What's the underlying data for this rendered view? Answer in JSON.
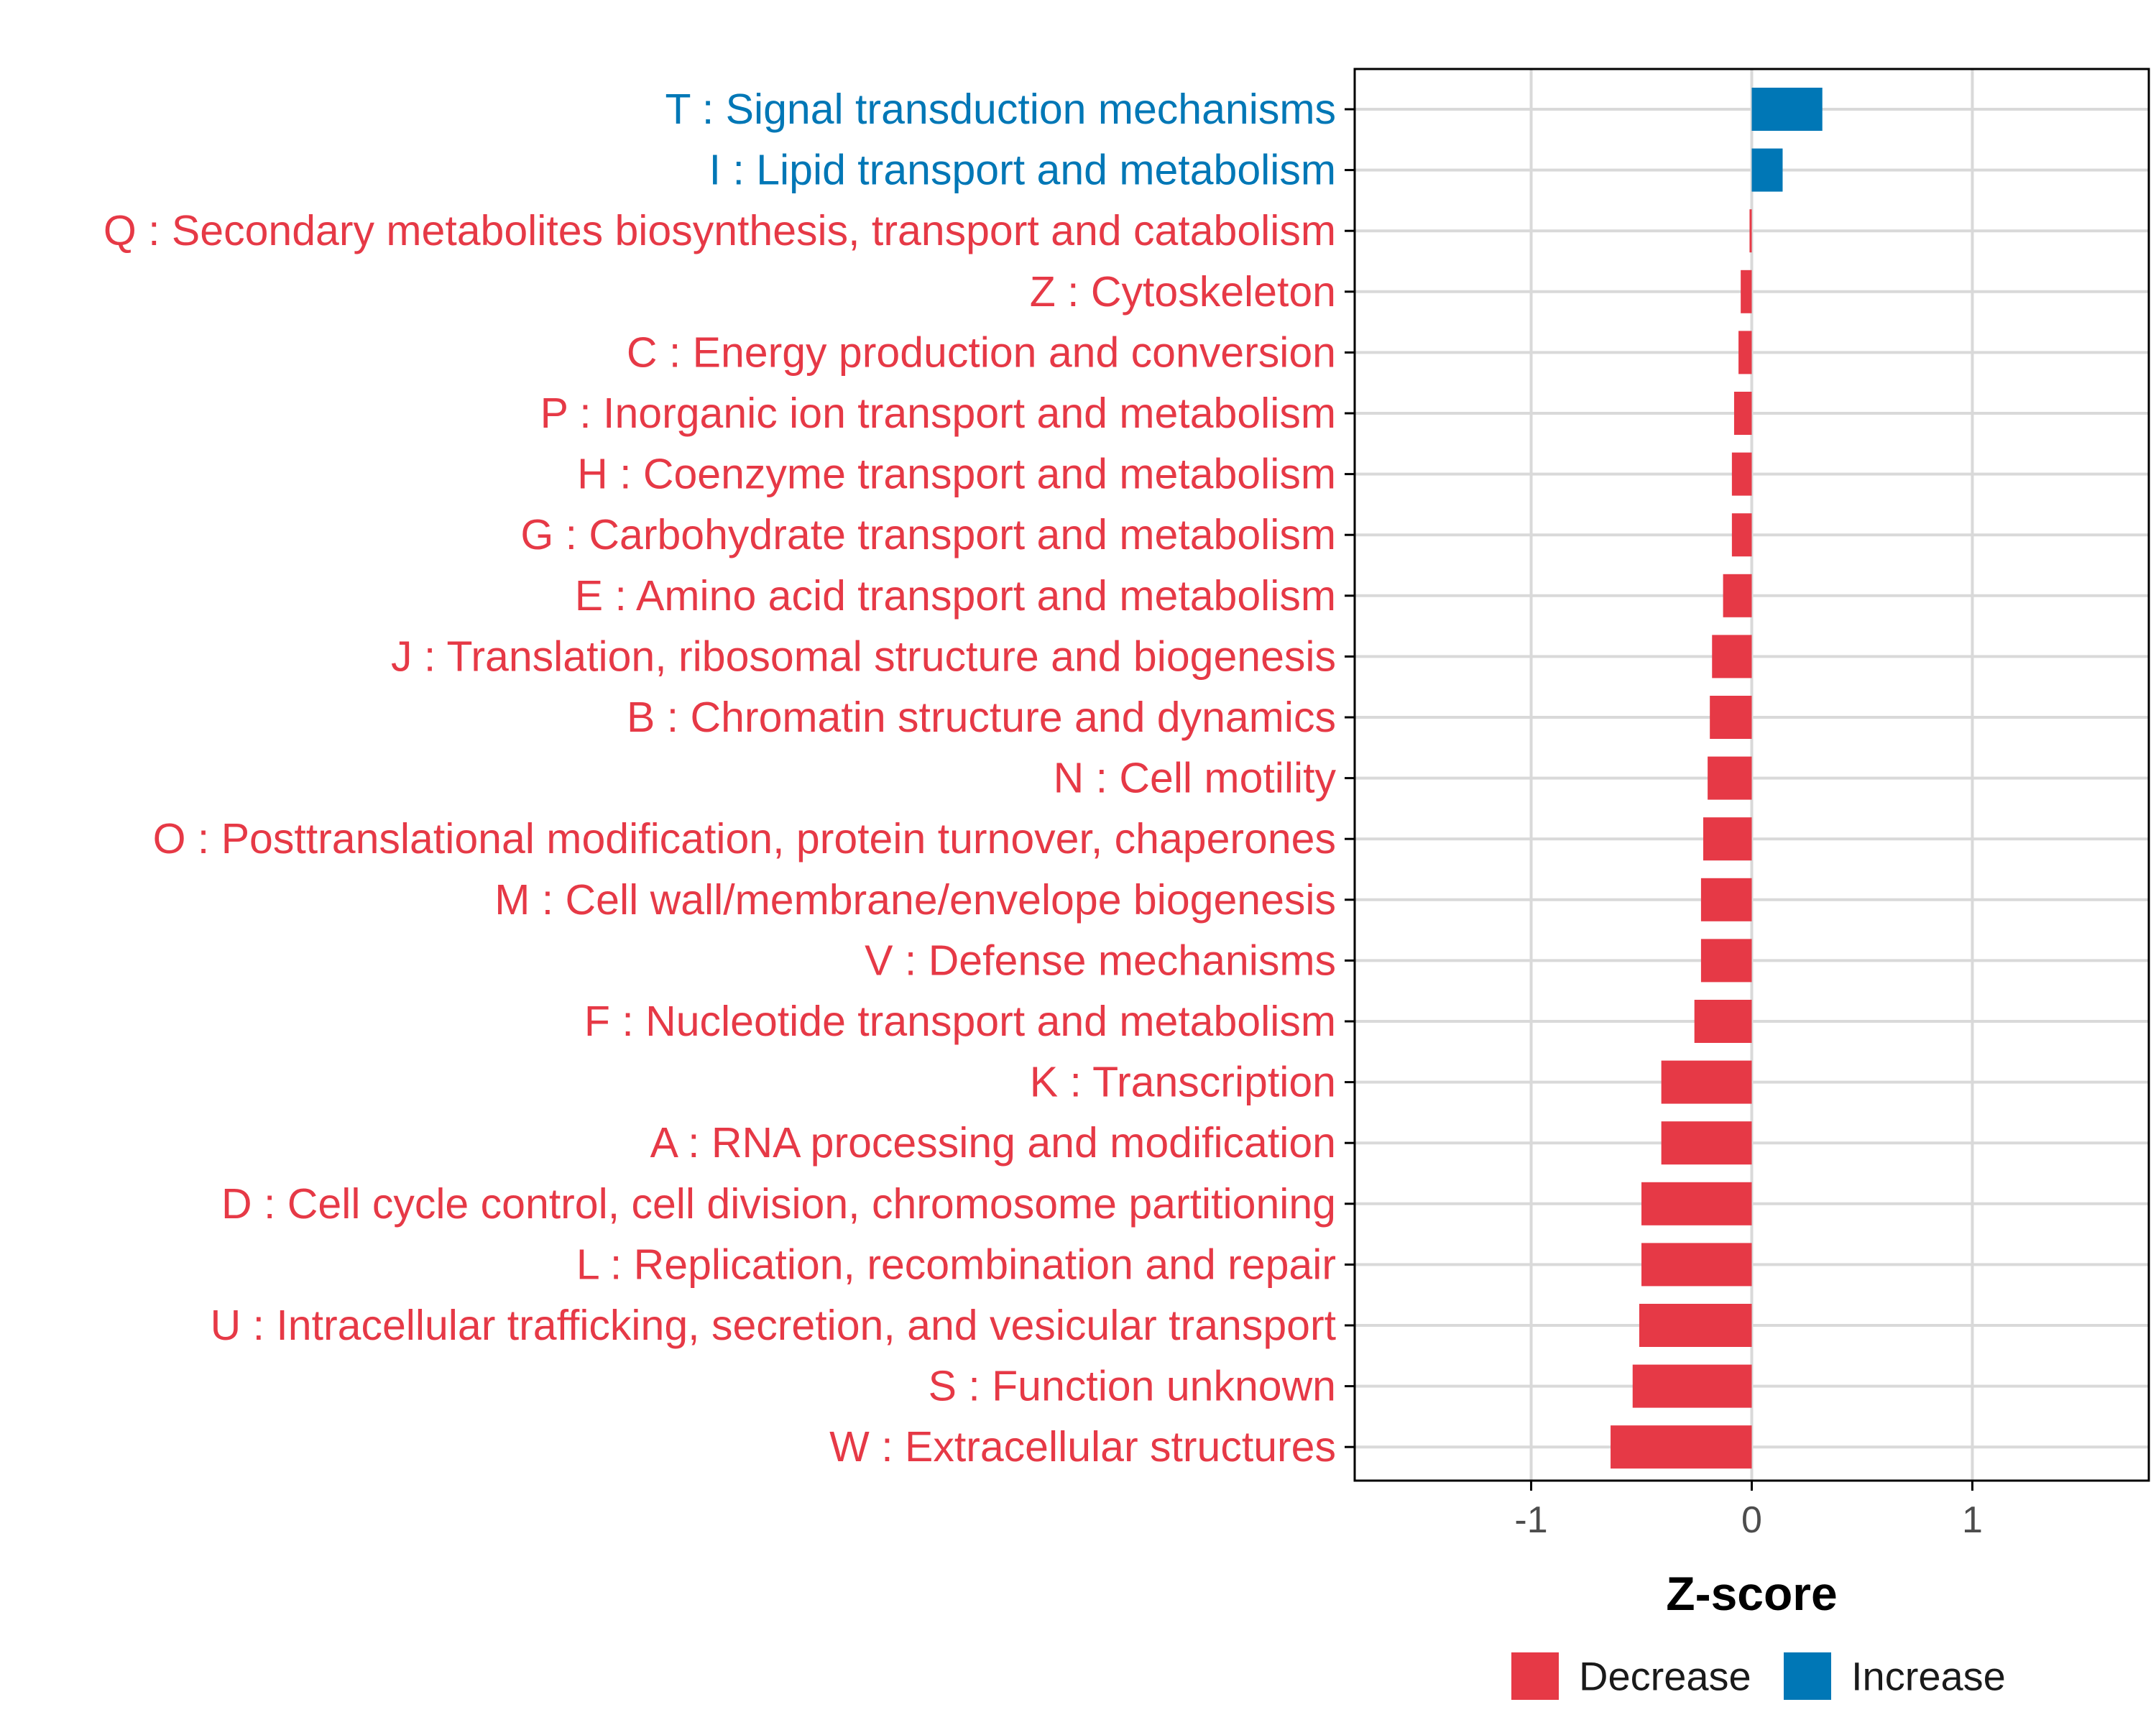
{
  "colors": {
    "decrease": "#e63946",
    "increase": "#0077b6",
    "grid": "#d9d9d9",
    "axis": "#000000",
    "tick_text": "#4d4d4d"
  },
  "chart_data": {
    "type": "bar",
    "orientation": "horizontal",
    "xlabel": "Z-score",
    "xlim": [
      -1.8,
      1.8
    ],
    "xticks": [
      -1,
      0,
      1
    ],
    "xtick_labels": [
      "-1",
      "0",
      "1"
    ],
    "grid": true,
    "legend_position": "bottom",
    "legend": [
      {
        "name": "Decrease",
        "color": "#e63946"
      },
      {
        "name": "Increase",
        "color": "#0077b6"
      }
    ],
    "categories": [
      "T : Signal transduction mechanisms",
      "I : Lipid transport and metabolism",
      "Q : Secondary metabolites biosynthesis, transport and catabolism",
      "Z : Cytoskeleton",
      "C : Energy production and conversion",
      "P : Inorganic ion transport and metabolism",
      "H : Coenzyme transport and metabolism",
      "G : Carbohydrate transport and metabolism",
      "E : Amino acid transport and metabolism",
      "J : Translation, ribosomal structure and biogenesis",
      "B : Chromatin structure and dynamics",
      "N : Cell motility",
      "O : Posttranslational modification, protein turnover, chaperones",
      "M : Cell wall/membrane/envelope biogenesis",
      "V : Defense mechanisms",
      "F : Nucleotide transport and metabolism",
      "K : Transcription",
      "A : RNA processing and modification",
      "D : Cell cycle control, cell division, chromosome partitioning",
      "L : Replication, recombination and repair",
      "U : Intracellular trafficking, secretion, and vesicular transport",
      "S : Function unknown",
      "W : Extracellular structures"
    ],
    "values": [
      0.32,
      0.14,
      -0.01,
      -0.05,
      -0.06,
      -0.08,
      -0.09,
      -0.09,
      -0.13,
      -0.18,
      -0.19,
      -0.2,
      -0.22,
      -0.23,
      -0.23,
      -0.26,
      -0.41,
      -0.41,
      -0.5,
      -0.5,
      -0.51,
      -0.54,
      -0.64
    ],
    "groups": [
      "Increase",
      "Increase",
      "Decrease",
      "Decrease",
      "Decrease",
      "Decrease",
      "Decrease",
      "Decrease",
      "Decrease",
      "Decrease",
      "Decrease",
      "Decrease",
      "Decrease",
      "Decrease",
      "Decrease",
      "Decrease",
      "Decrease",
      "Decrease",
      "Decrease",
      "Decrease",
      "Decrease",
      "Decrease",
      "Decrease"
    ]
  }
}
